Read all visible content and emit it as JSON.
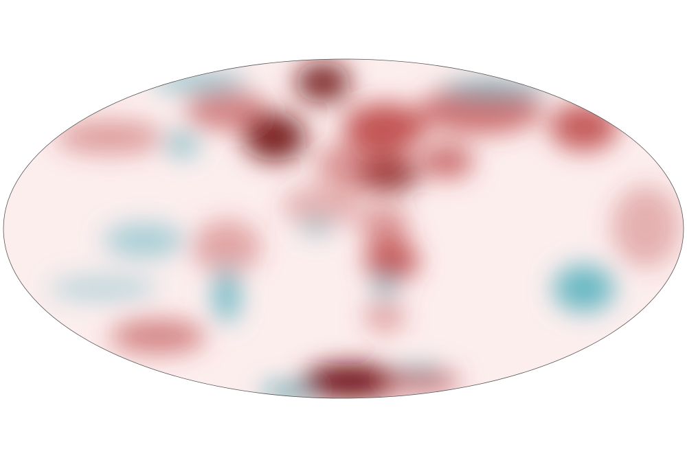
{
  "map": {
    "projection": "Mollweide",
    "colors": {
      "background": "#ffffff",
      "base_fill": "#fdeeee",
      "outline": "#555555",
      "warm": "#b83a3a",
      "warm_strong": "#6e0f12",
      "cool": "#3aa7b5",
      "cool_strong": "#1a7f8e"
    }
  }
}
